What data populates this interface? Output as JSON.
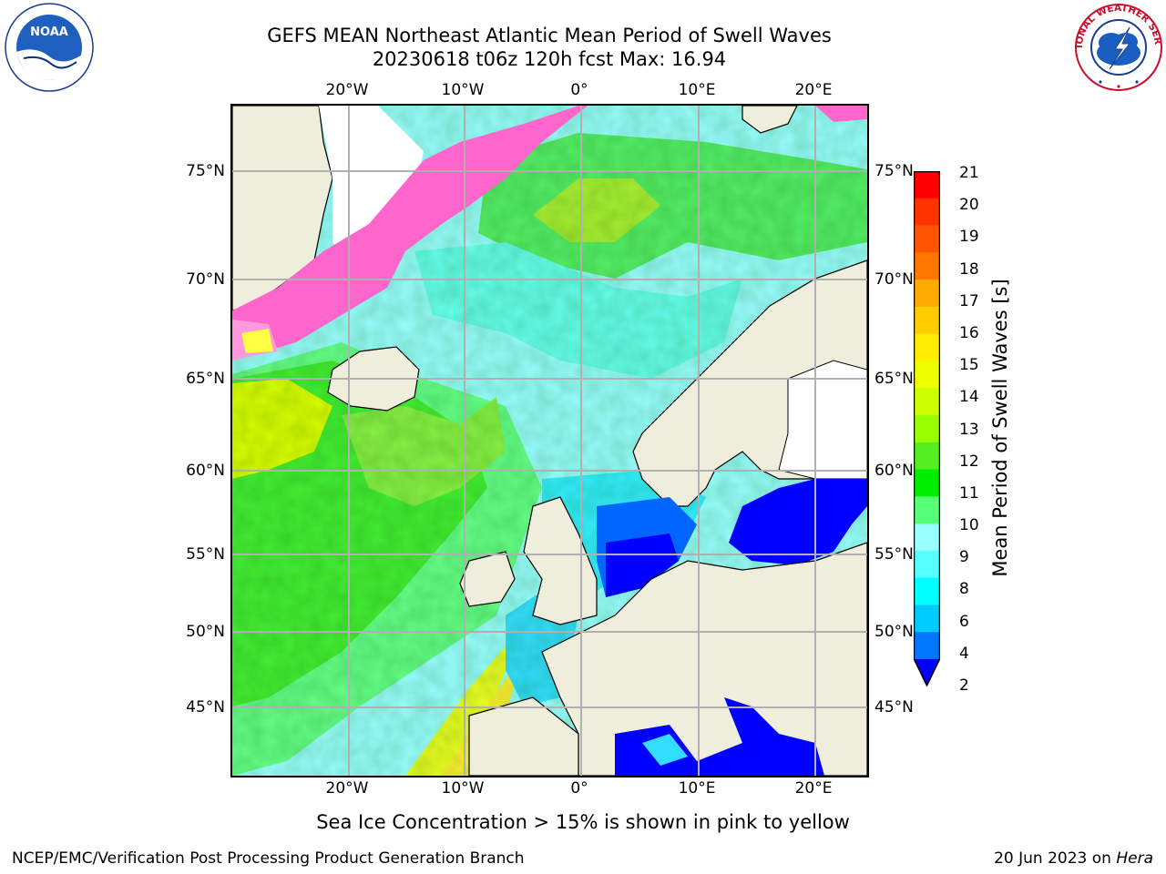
{
  "title_line1": "GEFS MEAN Northeast Atlantic Mean Period of Swell Waves",
  "title_line2": "20230618 t06z 120h fcst   Max: 16.94",
  "map": {
    "lon_ticks": [
      "20°W",
      "10°W",
      "0°",
      "10°E",
      "20°E"
    ],
    "lat_ticks_left": [
      "75°N",
      "70°N",
      "65°N",
      "60°N",
      "55°N",
      "50°N",
      "45°N"
    ],
    "lat_ticks_right": [
      "75°N",
      "70°N",
      "65°N",
      "60°N",
      "55°N",
      "50°N",
      "45°N"
    ],
    "land_color": "#efeddc",
    "gridline_color": "#b0b0b0"
  },
  "colorbar": {
    "label": "Mean Period of Swell Waves [s]",
    "ticks": [
      "21",
      "20",
      "19",
      "18",
      "17",
      "16",
      "15",
      "14",
      "13",
      "12",
      "11",
      "10",
      "9",
      "8",
      "6",
      "4",
      "2"
    ],
    "colors": [
      "#ff0000",
      "#ff3300",
      "#ff5500",
      "#ff7700",
      "#ffaa00",
      "#ffcc00",
      "#ffee00",
      "#eeff00",
      "#ccff00",
      "#99ff00",
      "#55ee22",
      "#00ee00",
      "#55ff77",
      "#99ffff",
      "#55ffff",
      "#00ffff",
      "#00ccff",
      "#0077ff",
      "#0000ff"
    ]
  },
  "footnote": "Sea Ice Concentration > 15% is shown in pink to yellow",
  "credit": "NCEP/EMC/Verification Post Processing Product Generation Branch",
  "date_prefix": "20 Jun 2023 on ",
  "date_host": "Hera",
  "logos": {
    "noaa_text": "NOAA",
    "nws_text": "NATIONAL WEATHER SERVICE"
  }
}
